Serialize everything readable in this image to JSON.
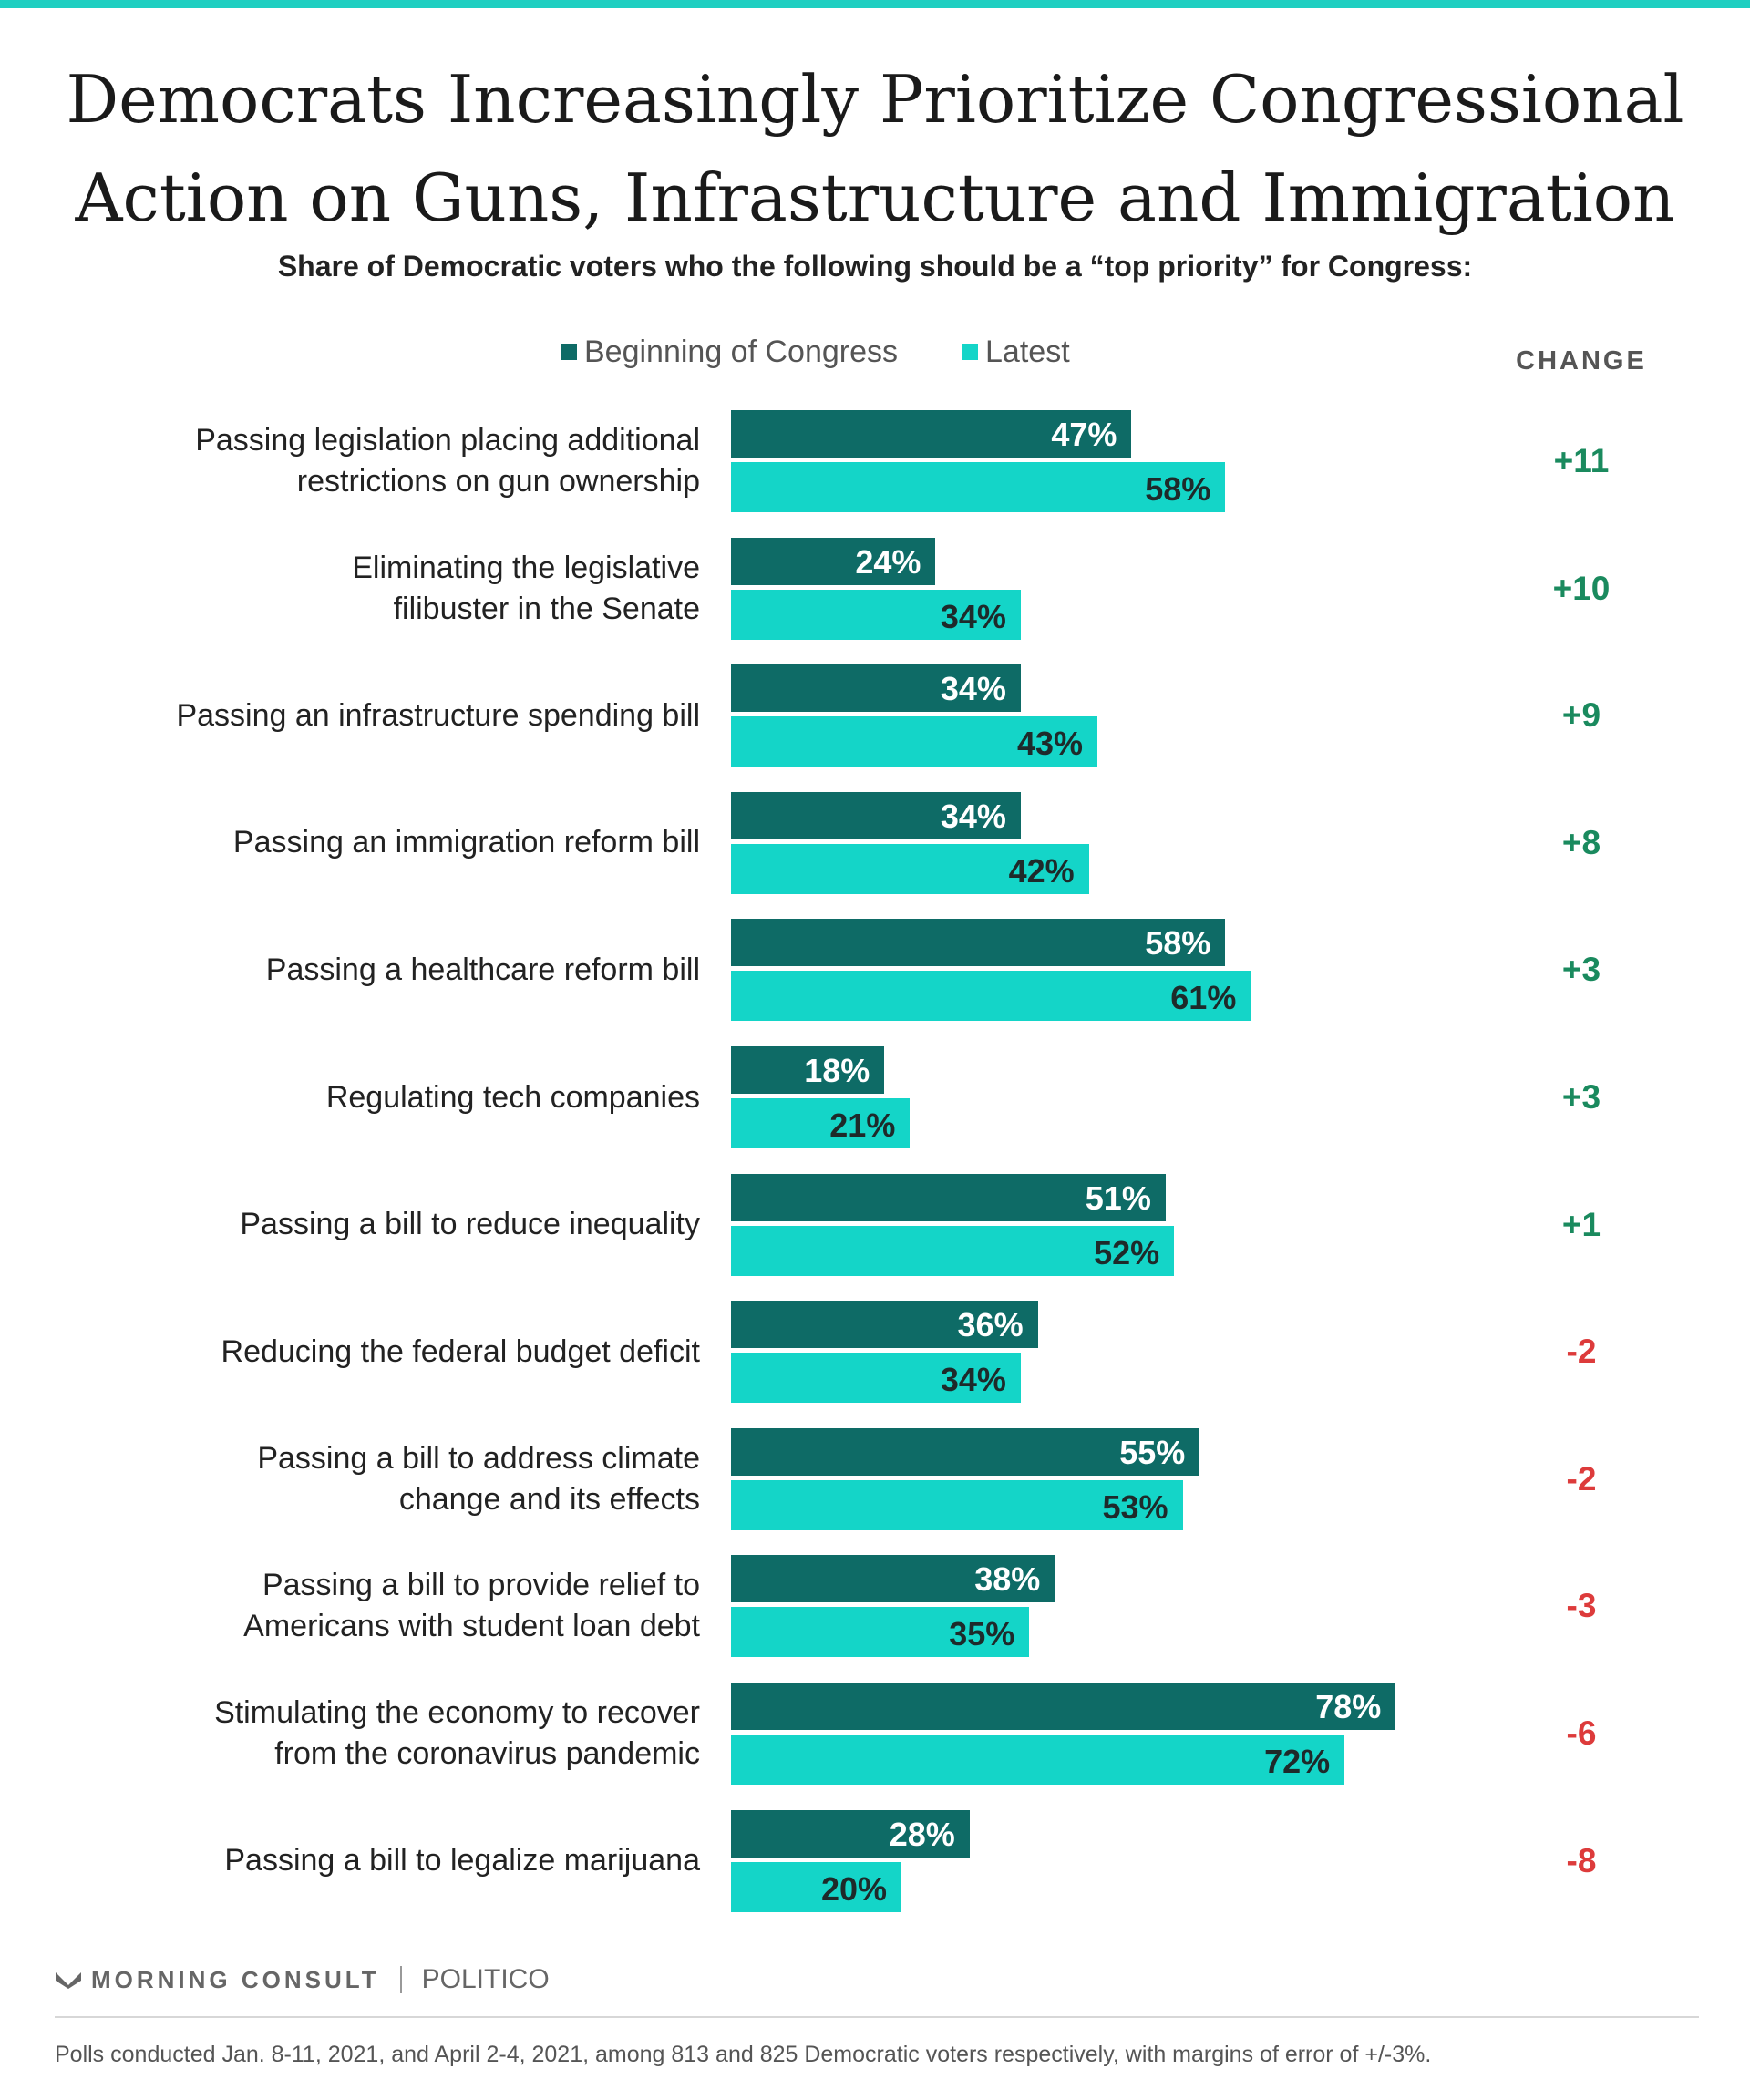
{
  "colors": {
    "accent": "#1fcfc1",
    "beginning": "#0e6b66",
    "latest": "#14d5c8",
    "positive": "#1a8a5e",
    "negative": "#dd3b3b"
  },
  "chart_data": {
    "type": "bar",
    "orientation": "horizontal",
    "title_lines": [
      "Democrats Increasingly Prioritize Congressional",
      "Action on Guns, Infrastructure and Immigration"
    ],
    "subtitle": "Share of Democratic voters who the following should be a “top priority” for Congress:",
    "legend_placement": "top",
    "xlim": [
      0,
      100
    ],
    "grid": false,
    "change_header": "CHANGE",
    "categories": [
      [
        "Passing legislation placing additional",
        "restrictions on gun ownership"
      ],
      [
        "Eliminating the legislative",
        "filibuster in the Senate"
      ],
      [
        "Passing an infrastructure spending bill"
      ],
      [
        "Passing an immigration reform bill"
      ],
      [
        "Passing a healthcare reform bill"
      ],
      [
        "Regulating tech companies"
      ],
      [
        "Passing a bill to reduce inequality"
      ],
      [
        "Reducing the federal budget deficit"
      ],
      [
        "Passing a bill to address climate",
        "change and its effects"
      ],
      [
        "Passing a bill to provide relief to",
        "Americans with student loan debt"
      ],
      [
        "Stimulating the economy to recover",
        "from the coronavirus pandemic"
      ],
      [
        "Passing a bill to legalize marijuana"
      ]
    ],
    "series": [
      {
        "name": "Beginning of Congress",
        "values": [
          47,
          24,
          34,
          34,
          58,
          18,
          51,
          36,
          55,
          38,
          78,
          28
        ]
      },
      {
        "name": "Latest",
        "values": [
          58,
          34,
          43,
          42,
          61,
          21,
          52,
          34,
          53,
          35,
          72,
          20
        ]
      }
    ],
    "changes": [
      "+11",
      "+10",
      "+9",
      "+8",
      "+3",
      "+3",
      "+1",
      "-2",
      "-2",
      "-3",
      "-6",
      "-8"
    ]
  },
  "footer": {
    "logo_morning_consult": "MORNING CONSULT",
    "logo_politico": "POLITICO",
    "note": "Polls conducted Jan. 8-11, 2021, and April 2-4, 2021, among 813 and 825 Democratic voters respectively, with margins of error of +/-3%."
  }
}
